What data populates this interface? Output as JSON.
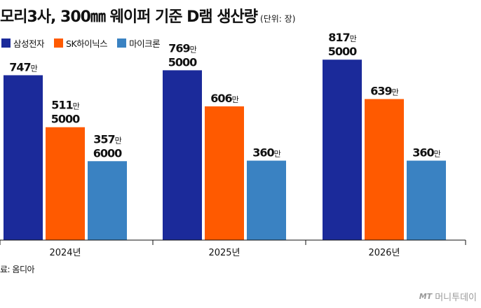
{
  "title": "모리3사, 300㎜ 웨이퍼 기준 D램 생산량",
  "unit_note": "(단위: 장)",
  "source": "료: 옴디아",
  "watermark": "머니투데이",
  "watermark_mark": "MT",
  "chart_data": {
    "type": "bar",
    "title": "모리3사, 300㎜ 웨이퍼 기준 D램 생산량",
    "unit": "장",
    "categories": [
      "2024년",
      "2025년",
      "2026년"
    ],
    "ylim": [
      0,
      8500000
    ],
    "series": [
      {
        "name": "삼성전자",
        "color": "#1b2a9a",
        "values": [
          7470000,
          7695000,
          8175000
        ],
        "labels": [
          [
            "747만"
          ],
          [
            "769만",
            "5000"
          ],
          [
            "817만",
            "5000"
          ]
        ]
      },
      {
        "name": "SK하이닉스",
        "color": "#ff5a00",
        "values": [
          5115000,
          6060000,
          6390000
        ],
        "labels": [
          [
            "511만",
            "5000"
          ],
          [
            "606만"
          ],
          [
            "639만"
          ]
        ]
      },
      {
        "name": "마이크론",
        "color": "#3a82c2",
        "values": [
          3576000,
          3600000,
          3600000
        ],
        "labels": [
          [
            "357만",
            "6000"
          ],
          [
            "360만"
          ],
          [
            "360만"
          ]
        ]
      }
    ]
  }
}
